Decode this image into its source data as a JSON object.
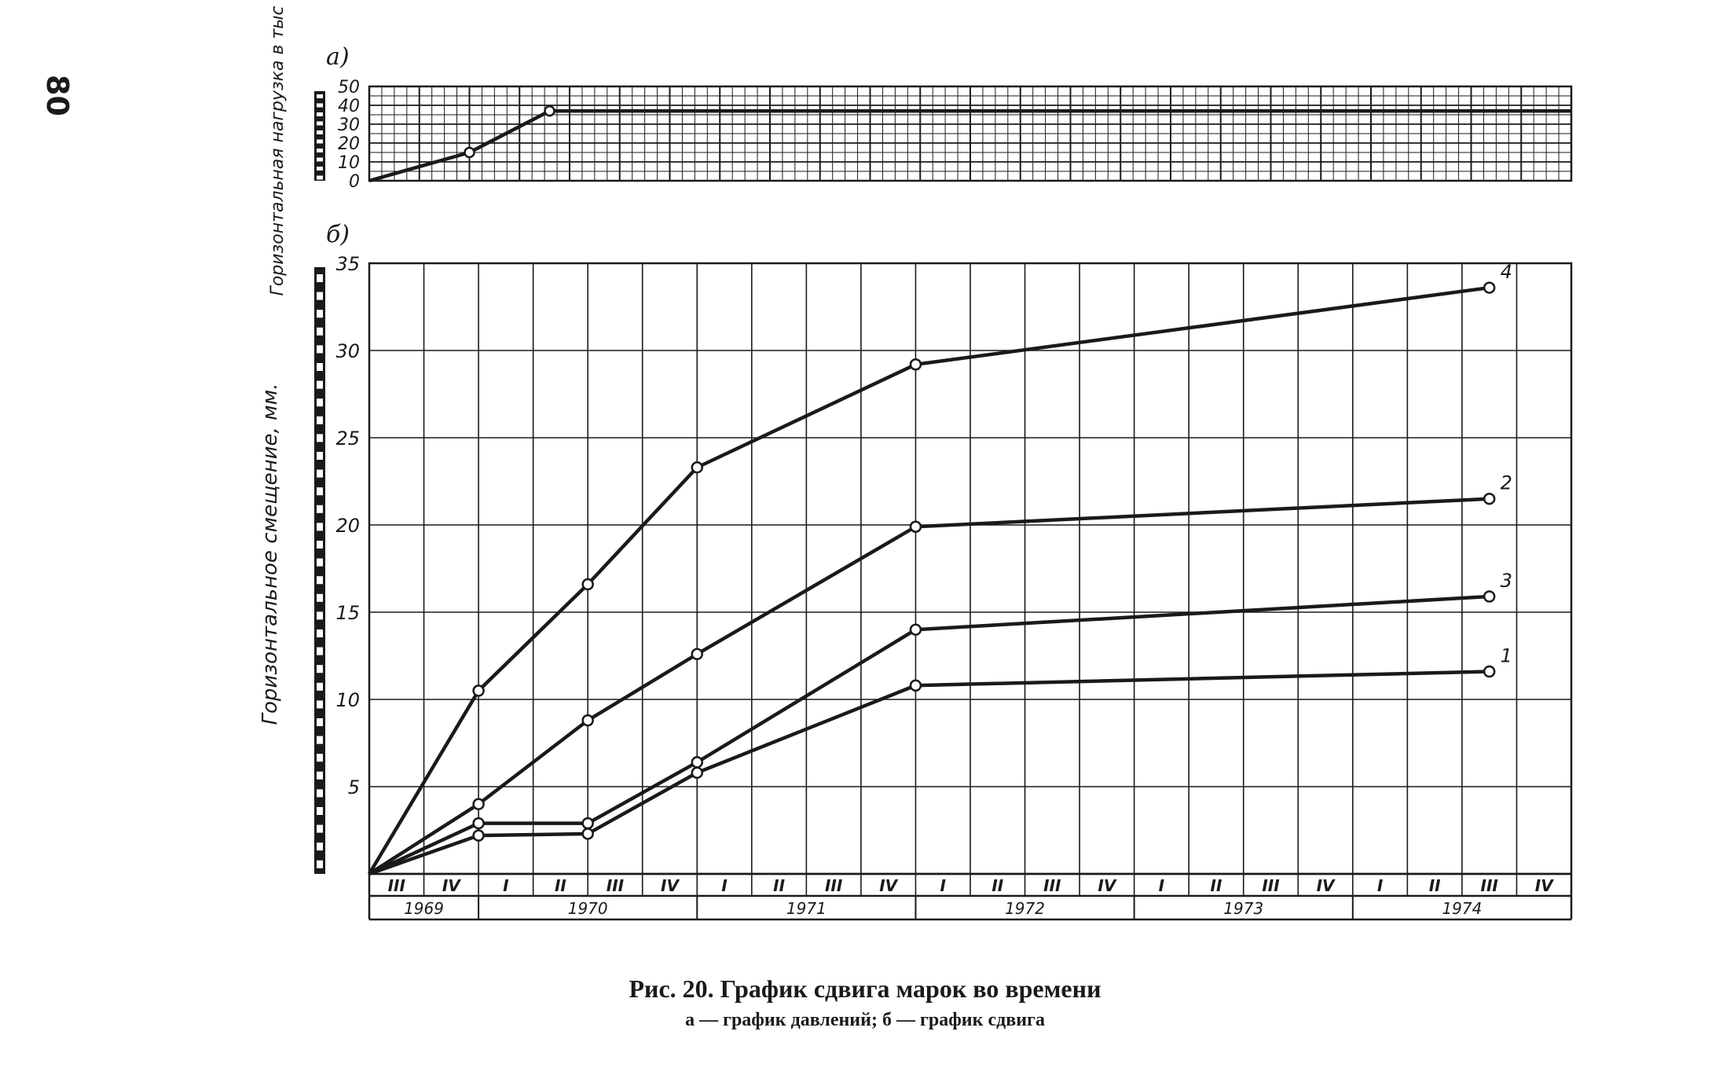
{
  "page_number": "80",
  "caption": {
    "title": "Рис. 20. График сдвига марок во времени",
    "subtitle": "а — график давлений; б — график сдвига"
  },
  "colors": {
    "ink": "#1a1a1a",
    "paper": "#ffffff"
  },
  "chart_data": [
    {
      "id": "a",
      "panel_label": "а)",
      "type": "line",
      "ylabel": "Горизонтальная нагрузка в тыс т/м",
      "ylim": [
        0,
        50
      ],
      "yticks": [
        0,
        10,
        20,
        30,
        40,
        50
      ],
      "grid": true,
      "series": [
        {
          "x": [
            0,
            2,
            3.6,
            24
          ],
          "y": [
            0,
            15,
            37,
            37
          ],
          "markers": [
            false,
            true,
            true,
            false
          ]
        }
      ]
    },
    {
      "id": "b",
      "panel_label": "б)",
      "type": "line",
      "ylabel": "Горизонтальное смещение, мм.",
      "ylim": [
        0,
        35
      ],
      "yticks": [
        5,
        10,
        15,
        20,
        25,
        30,
        35
      ],
      "grid": true,
      "x_axis": {
        "quarters": [
          "III",
          "IV",
          "I",
          "II",
          "III",
          "IV",
          "I",
          "II",
          "III",
          "IV",
          "I",
          "II",
          "III",
          "IV",
          "I",
          "II",
          "III",
          "IV",
          "I",
          "II",
          "III",
          "IV"
        ],
        "years": [
          {
            "label": "1969",
            "span": [
              0,
              2
            ]
          },
          {
            "label": "1970",
            "span": [
              2,
              6
            ]
          },
          {
            "label": "1971",
            "span": [
              6,
              10
            ]
          },
          {
            "label": "1972",
            "span": [
              10,
              14
            ]
          },
          {
            "label": "1973",
            "span": [
              14,
              18
            ]
          },
          {
            "label": "1974",
            "span": [
              18,
              22
            ]
          }
        ]
      },
      "series": [
        {
          "name": "1",
          "x": [
            0,
            2,
            4,
            6,
            10,
            20.5
          ],
          "y": [
            0,
            2.2,
            2.3,
            5.8,
            10.8,
            11.6
          ]
        },
        {
          "name": "2",
          "x": [
            0,
            2,
            4,
            6,
            10,
            20.5
          ],
          "y": [
            0,
            4,
            8.8,
            12.6,
            19.9,
            21.5
          ]
        },
        {
          "name": "3",
          "x": [
            0,
            2,
            4,
            6,
            10,
            20.5
          ],
          "y": [
            0,
            2.9,
            2.9,
            6.4,
            14,
            15.9
          ]
        },
        {
          "name": "4",
          "x": [
            0,
            2,
            4,
            6,
            10,
            20.5
          ],
          "y": [
            0,
            10.5,
            16.6,
            23.3,
            29.2,
            33.6
          ]
        }
      ]
    }
  ]
}
